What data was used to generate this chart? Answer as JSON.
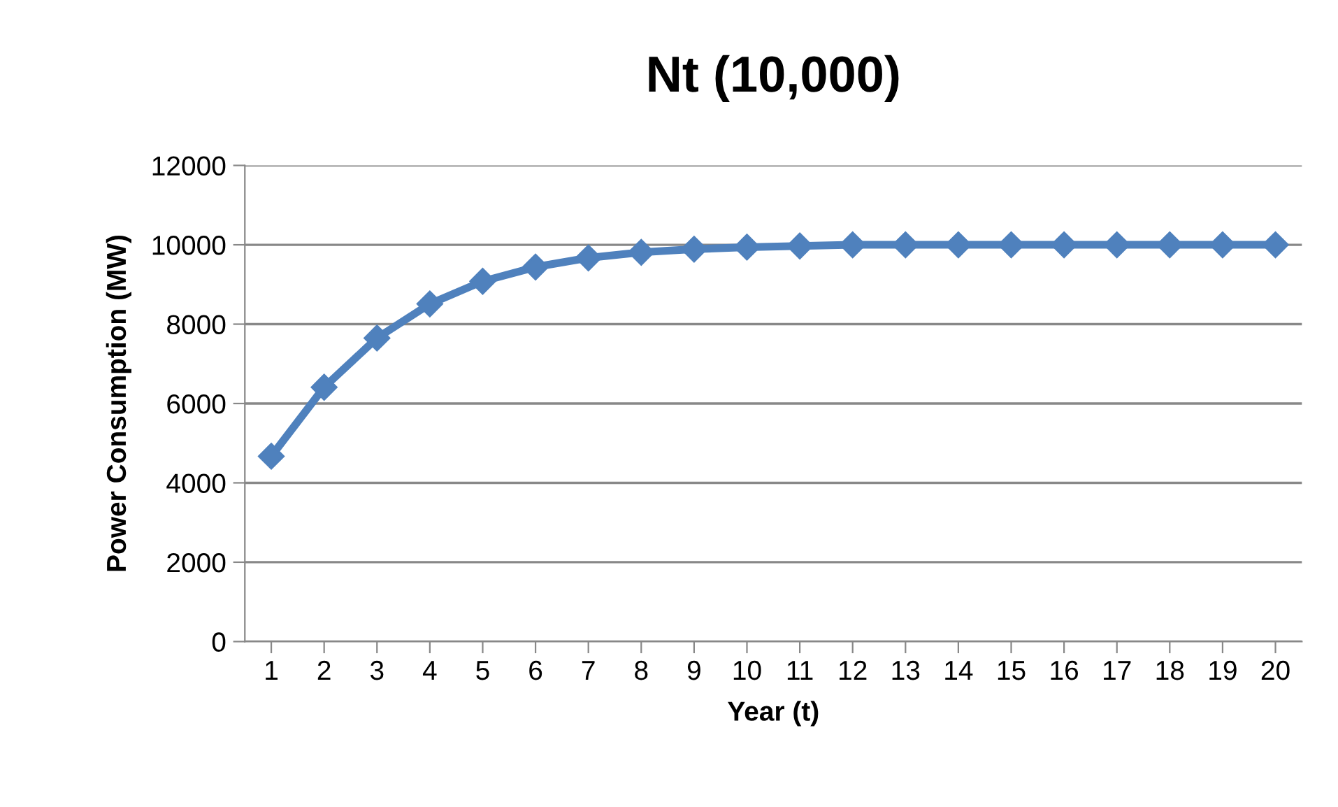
{
  "chart_data": {
    "type": "line",
    "title": "Nt (10,000)",
    "xlabel": "Year (t)",
    "ylabel": "Power Consumption (MW)",
    "categories": [
      "1",
      "2",
      "3",
      "4",
      "5",
      "6",
      "7",
      "8",
      "9",
      "10",
      "11",
      "12",
      "13",
      "14",
      "15",
      "16",
      "17",
      "18",
      "19",
      "20"
    ],
    "series": [
      {
        "color": "#4f81bd",
        "values": [
          4670,
          6410,
          7650,
          8510,
          9080,
          9440,
          9670,
          9810,
          9890,
          9940,
          9970,
          10000,
          10000,
          10000,
          10000,
          10000,
          10000,
          10000,
          10000,
          10000
        ]
      }
    ],
    "ylim": [
      0,
      12000
    ],
    "yticks": [
      0,
      2000,
      4000,
      6000,
      8000,
      10000,
      12000
    ],
    "grid": "y",
    "marker": "diamond",
    "line_style": "solid"
  }
}
